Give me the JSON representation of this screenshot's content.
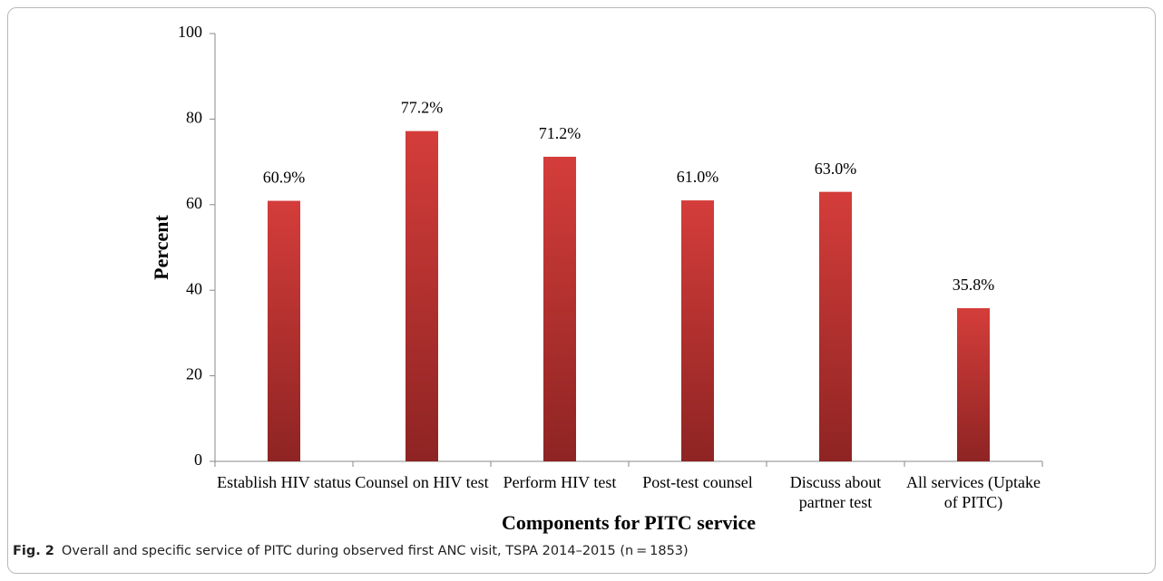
{
  "chart_data": {
    "type": "bar",
    "categories": [
      "Establish HIV status",
      "Counsel on HIV test",
      "Perform HIV test",
      "Post-test counsel",
      "Discuss about partner test",
      "All services (Uptake of PITC)"
    ],
    "values": [
      60.9,
      77.2,
      71.2,
      61.0,
      63.0,
      35.8
    ],
    "value_labels": [
      "60.9%",
      "77.2%",
      "71.2%",
      "61.0%",
      "63.0%",
      "35.8%"
    ],
    "color": "#cf3a37",
    "ylim": [
      0,
      100
    ],
    "yticks": [
      0,
      20,
      40,
      60,
      80,
      100
    ],
    "ylabel": "Percent",
    "xlabel": "Components for PITC service"
  },
  "caption": {
    "label": "Fig. 2",
    "text": "Overall and specific service of PITC during observed first ANC visit, TSPA 2014–2015 (n = 1853)"
  }
}
